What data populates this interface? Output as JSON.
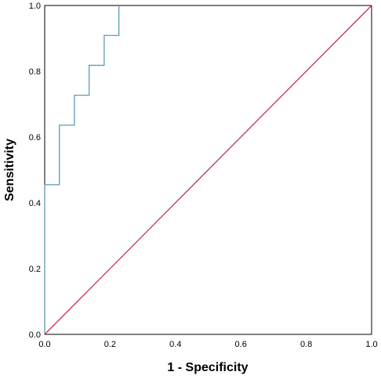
{
  "chart_data": {
    "type": "line",
    "title": "",
    "xlabel": "1 - Specificity",
    "ylabel": "Sensitivity",
    "xlim": [
      0,
      1
    ],
    "ylim": [
      0,
      1
    ],
    "x_ticks": [
      "0.0",
      "0.2",
      "0.4",
      "0.6",
      "0.8",
      "1.0"
    ],
    "y_ticks": [
      "0.0",
      "0.2",
      "0.4",
      "0.6",
      "0.8",
      "1.0"
    ],
    "grid": false,
    "legend": "none",
    "series": [
      {
        "style": "step",
        "color": "#5a9ab8",
        "x": [
          0.0,
          0.0,
          0.045,
          0.045,
          0.091,
          0.091,
          0.136,
          0.136,
          0.182,
          0.182,
          0.227,
          0.227
        ],
        "y": [
          0.0,
          0.455,
          0.455,
          0.636,
          0.636,
          0.727,
          0.727,
          0.818,
          0.818,
          0.909,
          0.909,
          1.0
        ]
      },
      {
        "style": "reference",
        "color": "#c2344d",
        "x": [
          0,
          1
        ],
        "y": [
          0,
          1
        ]
      }
    ]
  }
}
